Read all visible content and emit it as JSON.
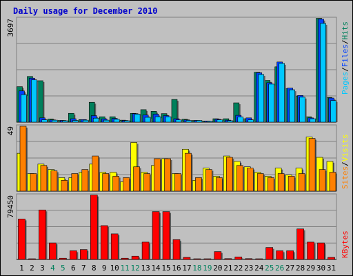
{
  "title": "Daily usage for December 2010",
  "colors": {
    "background": "#c0c0c0",
    "hits": "#00805c",
    "files": "#0040ff",
    "pages": "#00c8ff",
    "visits": "#ffff00",
    "sites": "#ff8000",
    "kbytes": "#ff0000",
    "weekend_label": "#00805c",
    "weekday_label": "#000000",
    "grid": "#808080"
  },
  "legends": {
    "pages": "Pages",
    "files": "Files",
    "hits": "Hits",
    "sites": "Sites",
    "visits": "Visits",
    "kbytes": "KBytes",
    "sep": "/"
  },
  "chart_data": [
    {
      "type": "bar",
      "title": "Daily usage for December 2010",
      "ymax_label": "3697",
      "ylim": [
        0,
        3697
      ],
      "x": [
        1,
        2,
        3,
        4,
        5,
        6,
        7,
        8,
        9,
        10,
        11,
        12,
        13,
        14,
        15,
        16,
        17,
        18,
        19,
        20,
        21,
        22,
        23,
        24,
        25,
        26,
        27,
        28,
        29,
        30,
        31
      ],
      "x_labels": [
        "1",
        "2",
        "3",
        "4",
        "5",
        "6",
        "7",
        "8",
        "9",
        "10",
        "11",
        "12",
        "13",
        "14",
        "15",
        "16",
        "17",
        "18",
        "19",
        "20",
        "21",
        "22",
        "23",
        "24",
        "25",
        "26",
        "27",
        "28",
        "29",
        "30",
        "31"
      ],
      "weekend_days": [
        4,
        5,
        11,
        12,
        18,
        19,
        25,
        26
      ],
      "series": [
        {
          "name": "Hits",
          "values": [
            1250,
            1610,
            1460,
            110,
            60,
            310,
            90,
            700,
            190,
            190,
            70,
            310,
            440,
            380,
            300,
            800,
            100,
            60,
            40,
            120,
            120,
            680,
            120,
            1760,
            1470,
            1950,
            1180,
            920,
            190,
            3660,
            870
          ]
        },
        {
          "name": "Files",
          "values": [
            1100,
            1550,
            150,
            80,
            60,
            120,
            90,
            230,
            110,
            130,
            60,
            300,
            250,
            280,
            230,
            120,
            80,
            60,
            40,
            100,
            70,
            240,
            150,
            1740,
            1390,
            2120,
            1200,
            940,
            150,
            3630,
            850
          ]
        },
        {
          "name": "Pages",
          "values": [
            970,
            1490,
            80,
            70,
            50,
            60,
            70,
            140,
            70,
            100,
            50,
            280,
            170,
            190,
            190,
            80,
            60,
            60,
            30,
            80,
            50,
            180,
            80,
            1680,
            1340,
            2070,
            1140,
            880,
            120,
            3480,
            760
          ]
        }
      ]
    },
    {
      "type": "bar",
      "ymax_label": "49",
      "ylim": [
        0,
        49
      ],
      "x": [
        1,
        2,
        3,
        4,
        5,
        6,
        7,
        8,
        9,
        10,
        11,
        12,
        13,
        14,
        15,
        16,
        17,
        18,
        19,
        20,
        21,
        22,
        23,
        24,
        25,
        26,
        27,
        28,
        29,
        30,
        31
      ],
      "weekend_days": [
        4,
        5,
        11,
        12,
        18,
        19,
        25,
        26
      ],
      "series": [
        {
          "name": "Visits",
          "values": [
            28,
            13,
            20,
            16,
            10,
            10,
            14,
            20,
            14,
            14,
            7,
            36,
            14,
            19,
            24,
            13,
            31,
            8,
            17,
            11,
            26,
            22,
            18,
            14,
            11,
            17,
            12,
            17,
            40,
            25,
            22
          ]
        },
        {
          "name": "Sites",
          "values": [
            48,
            13,
            19,
            15,
            8,
            13,
            16,
            26,
            13,
            11,
            10,
            18,
            13,
            24,
            24,
            13,
            28,
            10,
            16,
            10,
            25,
            19,
            17,
            13,
            10,
            13,
            11,
            13,
            39,
            16,
            14
          ]
        }
      ]
    },
    {
      "type": "bar",
      "ymax_label": "79450",
      "ylim": [
        0,
        79450
      ],
      "x": [
        1,
        2,
        3,
        4,
        5,
        6,
        7,
        8,
        9,
        10,
        11,
        12,
        13,
        14,
        15,
        16,
        17,
        18,
        19,
        20,
        21,
        22,
        23,
        24,
        25,
        26,
        27,
        28,
        29,
        30,
        31
      ],
      "weekend_days": [
        4,
        5,
        11,
        12,
        18,
        19,
        25,
        26
      ],
      "series": [
        {
          "name": "KBytes",
          "values": [
            49000,
            300,
            60000,
            20000,
            1500,
            10500,
            12000,
            78000,
            41000,
            31000,
            1500,
            4000,
            21000,
            58000,
            58000,
            24000,
            2500,
            500,
            300,
            9500,
            1000,
            3000,
            1000,
            400,
            14500,
            10500,
            10500,
            37000,
            21000,
            20000,
            2500
          ]
        }
      ]
    }
  ]
}
